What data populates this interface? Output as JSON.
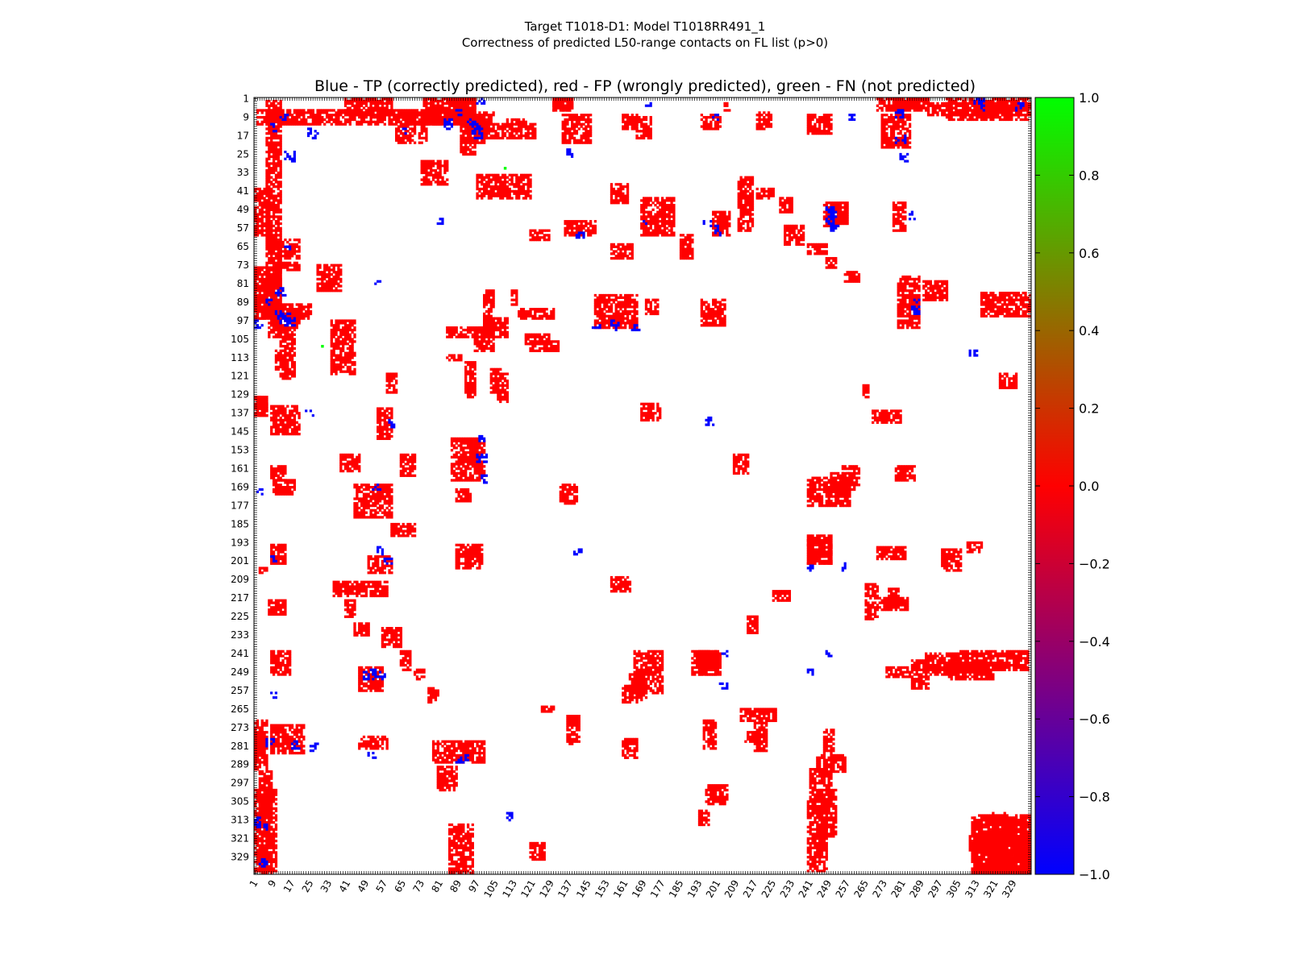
{
  "chart_data": {
    "type": "heatmap",
    "title_line1": "Target T1018-D1: Model T1018RR491_1",
    "title_line2": "Correctness of predicted L50-range contacts on FL list (p>0)",
    "subtitle": "Blue - TP (correctly predicted), red - FP (wrongly predicted), green - FN (not predicted)",
    "xlim": [
      1,
      336
    ],
    "ylim": [
      1,
      336
    ],
    "x_tick_labels": [
      "1",
      "9",
      "17",
      "25",
      "33",
      "41",
      "49",
      "57",
      "65",
      "73",
      "81",
      "89",
      "97",
      "105",
      "113",
      "121",
      "129",
      "137",
      "145",
      "153",
      "161",
      "169",
      "177",
      "185",
      "193",
      "201",
      "209",
      "217",
      "225",
      "233",
      "241",
      "249",
      "257",
      "265",
      "273",
      "281",
      "289",
      "297",
      "305",
      "313",
      "321",
      "329"
    ],
    "y_tick_labels": [
      "1",
      "9",
      "17",
      "25",
      "33",
      "41",
      "49",
      "57",
      "65",
      "73",
      "81",
      "89",
      "97",
      "105",
      "113",
      "121",
      "129",
      "137",
      "145",
      "153",
      "161",
      "169",
      "177",
      "185",
      "193",
      "201",
      "209",
      "217",
      "225",
      "233",
      "241",
      "249",
      "257",
      "265",
      "273",
      "281",
      "289",
      "297",
      "305",
      "313",
      "321",
      "329"
    ],
    "colorbar": {
      "range": [
        -1.0,
        1.0
      ],
      "tick_labels": [
        "1.0",
        "0.8",
        "0.6",
        "0.4",
        "0.2",
        "0.0",
        "−0.2",
        "−0.4",
        "−0.6",
        "−0.8",
        "−1.0"
      ],
      "colors": {
        "low": "#0000ff",
        "mid": "#ff0000",
        "high": "#00ff00"
      }
    },
    "categories": {
      "TP": "#0000ff",
      "FP": "#ff0000",
      "FN": "#00ff00"
    },
    "contact_regions_fp": [
      [
        1,
        10,
        300,
        335
      ],
      [
        6,
        12,
        2,
        90
      ],
      [
        1,
        8,
        40,
        60
      ],
      [
        8,
        20,
        62,
        70
      ],
      [
        10,
        20,
        72,
        75
      ],
      [
        1,
        10,
        88,
        96
      ],
      [
        8,
        20,
        92,
        100
      ],
      [
        12,
        18,
        100,
        122
      ],
      [
        1,
        6,
        130,
        138
      ],
      [
        8,
        20,
        134,
        146
      ],
      [
        8,
        14,
        160,
        166
      ],
      [
        9,
        18,
        166,
        172
      ],
      [
        8,
        14,
        194,
        202
      ],
      [
        3,
        6,
        204,
        206
      ],
      [
        7,
        14,
        218,
        224
      ],
      [
        8,
        16,
        240,
        250
      ],
      [
        1,
        6,
        270,
        292
      ],
      [
        8,
        22,
        272,
        284
      ],
      [
        3,
        8,
        292,
        336
      ],
      [
        90,
        96,
        1,
        25
      ],
      [
        28,
        38,
        73,
        84
      ],
      [
        96,
        104,
        7,
        12
      ],
      [
        86,
        92,
        1,
        10
      ],
      [
        100,
        104,
        95,
        100
      ],
      [
        44,
        60,
        168,
        182
      ],
      [
        50,
        60,
        199,
        206
      ],
      [
        46,
        56,
        247,
        257
      ],
      [
        46,
        58,
        277,
        282
      ],
      [
        78,
        100,
        279,
        288
      ],
      [
        84,
        94,
        100,
        104
      ],
      [
        96,
        104,
        100,
        110
      ],
      [
        115,
        130,
        92,
        96
      ],
      [
        118,
        128,
        103,
        107
      ],
      [
        120,
        132,
        106,
        110
      ],
      [
        130,
        138,
        1,
        6
      ],
      [
        34,
        44,
        97,
        120
      ],
      [
        54,
        60,
        135,
        148
      ],
      [
        64,
        70,
        155,
        164
      ],
      [
        60,
        70,
        185,
        190
      ],
      [
        74,
        86,
        1,
        12
      ],
      [
        84,
        90,
        112,
        114
      ],
      [
        86,
        100,
        148,
        166
      ],
      [
        88,
        94,
        170,
        175
      ],
      [
        88,
        99,
        194,
        204
      ],
      [
        95,
        97,
        156,
        160
      ],
      [
        38,
        46,
        155,
        162
      ],
      [
        35,
        58,
        210,
        216
      ],
      [
        40,
        44,
        218,
        225
      ],
      [
        44,
        50,
        228,
        233
      ],
      [
        56,
        64,
        230,
        238
      ],
      [
        64,
        68,
        240,
        248
      ],
      [
        70,
        74,
        248,
        252
      ],
      [
        76,
        80,
        256,
        262
      ],
      [
        80,
        88,
        290,
        300
      ],
      [
        110,
        118,
        10,
        14
      ],
      [
        120,
        128,
        58,
        62
      ],
      [
        133,
        140,
        168,
        176
      ],
      [
        155,
        163,
        208,
        214
      ],
      [
        160,
        168,
        255,
        262
      ],
      [
        165,
        177,
        240,
        258
      ],
      [
        160,
        166,
        278,
        286
      ],
      [
        190,
        202,
        240,
        250
      ],
      [
        193,
        197,
        309,
        315
      ],
      [
        196,
        205,
        298,
        306
      ],
      [
        214,
        218,
        225,
        232
      ],
      [
        211,
        226,
        265,
        270
      ],
      [
        213,
        221,
        275,
        279
      ],
      [
        240,
        250,
        192,
        202
      ],
      [
        244,
        256,
        285,
        292
      ],
      [
        240,
        248,
        305,
        335
      ],
      [
        250,
        260,
        163,
        170
      ],
      [
        264,
        266,
        125,
        130
      ],
      [
        268,
        280,
        136,
        141
      ],
      [
        277,
        287,
        1,
        5
      ],
      [
        270,
        282,
        195,
        200
      ],
      [
        271,
        283,
        217,
        222
      ],
      [
        274,
        284,
        247,
        251
      ],
      [
        291,
        305,
        241,
        250
      ],
      [
        300,
        320,
        245,
        252
      ],
      [
        310,
        325,
        320,
        326
      ],
      [
        312,
        336,
        311,
        336
      ],
      [
        315,
        336,
        85,
        95
      ],
      [
        323,
        330,
        120,
        126
      ]
    ],
    "contact_regions_tp": [
      [
        10,
        12,
        93,
        96
      ],
      [
        12,
        16,
        94,
        98
      ],
      [
        17,
        20,
        278,
        282
      ],
      [
        14,
        18,
        24,
        28
      ],
      [
        96,
        99,
        14,
        18
      ],
      [
        88,
        90,
        6,
        8
      ],
      [
        97,
        100,
        1,
        4
      ],
      [
        65,
        66,
        14,
        16
      ],
      [
        83,
        86,
        10,
        14
      ],
      [
        170,
        172,
        2,
        4
      ],
      [
        199,
        201,
        8,
        10
      ],
      [
        258,
        260,
        8,
        10
      ],
      [
        278,
        281,
        6,
        9
      ],
      [
        314,
        316,
        1,
        3
      ],
      [
        331,
        333,
        3,
        4
      ],
      [
        200,
        201,
        56,
        58
      ],
      [
        168,
        170,
        52,
        55
      ],
      [
        248,
        251,
        52,
        55
      ],
      [
        286,
        288,
        88,
        90
      ],
      [
        53,
        55,
        80,
        82
      ],
      [
        54,
        56,
        195,
        198
      ],
      [
        56,
        58,
        250,
        253
      ],
      [
        59,
        61,
        140,
        143
      ],
      [
        98,
        100,
        147,
        150
      ],
      [
        99,
        101,
        164,
        167
      ],
      [
        155,
        158,
        97,
        101
      ],
      [
        196,
        199,
        139,
        142
      ],
      [
        203,
        205,
        240,
        242
      ],
      [
        254,
        256,
        202,
        205
      ],
      [
        248,
        250,
        240,
        242
      ],
      [
        312,
        314,
        1,
        3
      ],
      [
        315,
        317,
        4,
        6
      ],
      [
        91,
        94,
        285,
        288
      ],
      [
        12,
        15,
        8,
        10
      ],
      [
        310,
        313,
        110,
        112
      ],
      [
        136,
        138,
        23,
        26
      ],
      [
        200,
        202,
        57,
        60
      ],
      [
        248,
        252,
        48,
        52
      ],
      [
        284,
        286,
        50,
        53
      ],
      [
        280,
        283,
        25,
        28
      ],
      [
        4,
        6,
        330,
        333
      ]
    ],
    "contact_points_fn": [
      [
        31,
        109
      ],
      [
        108,
        30
      ]
    ]
  }
}
